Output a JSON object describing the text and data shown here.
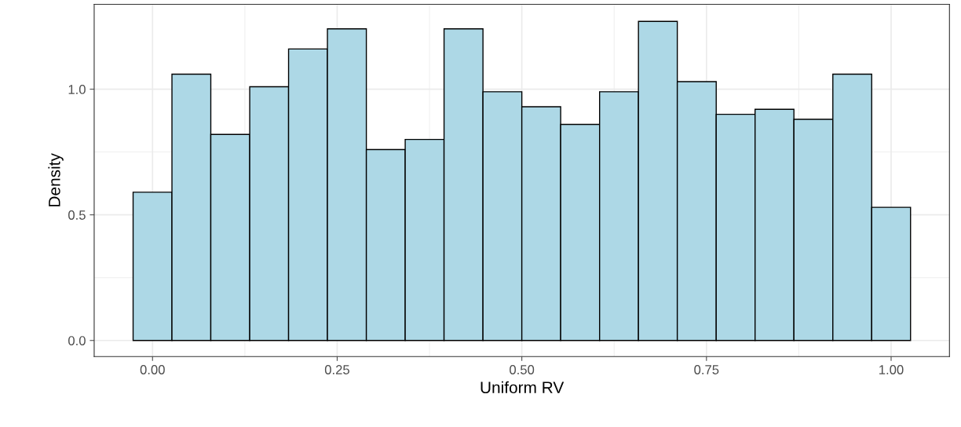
{
  "chart_data": {
    "type": "histogram",
    "xlabel": "Uniform RV",
    "ylabel": "Density",
    "bins": [
      -0.0263,
      0.0263,
      0.0789,
      0.1316,
      0.1842,
      0.2368,
      0.2895,
      0.3421,
      0.3947,
      0.4474,
      0.5,
      0.5526,
      0.6053,
      0.6579,
      0.7105,
      0.7632,
      0.8158,
      0.8684,
      0.9211,
      0.9737,
      1.0263
    ],
    "values": [
      0.59,
      1.06,
      0.82,
      1.01,
      1.16,
      1.24,
      0.76,
      0.8,
      1.24,
      0.99,
      0.93,
      0.86,
      0.99,
      1.27,
      1.03,
      0.9,
      0.92,
      0.88,
      1.06,
      0.53
    ],
    "color": "#add8e6",
    "xlim": [
      -0.079,
      1.079
    ],
    "xticks": [
      {
        "value": 0,
        "label": "0.00"
      },
      {
        "value": 0.25,
        "label": "0.25"
      },
      {
        "value": 0.5,
        "label": "0.50"
      },
      {
        "value": 0.75,
        "label": "0.75"
      },
      {
        "value": 1,
        "label": "1.00"
      }
    ],
    "ylim": [
      -0.064,
      1.338
    ],
    "yticks": [
      {
        "value": 0,
        "label": "0.0"
      },
      {
        "value": 0.5,
        "label": "0.5"
      },
      {
        "value": 1,
        "label": "1.0"
      }
    ],
    "grid": true
  }
}
